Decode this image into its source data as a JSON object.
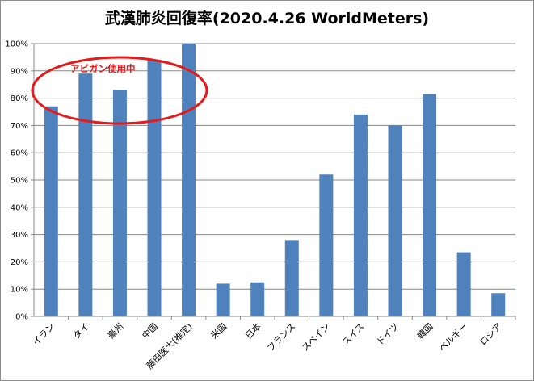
{
  "chart_data": {
    "type": "bar",
    "title": "武漢肺炎回復率(2020.4.26 WorldMeters)",
    "xlabel": "",
    "ylabel": "",
    "ylim": [
      0,
      100
    ],
    "yticks": [
      "0%",
      "10%",
      "20%",
      "30%",
      "40%",
      "50%",
      "60%",
      "70%",
      "80%",
      "90%",
      "100%"
    ],
    "categories": [
      "イラン",
      "タイ",
      "豪州",
      "中国",
      "藤田医大(推定)",
      "米国",
      "日本",
      "フランス",
      "スペイン",
      "スイス",
      "ドイツ",
      "韓国",
      "ベルギー",
      "ロシア"
    ],
    "values": [
      77,
      89,
      83,
      94,
      100,
      12,
      12.5,
      28,
      52,
      74,
      70,
      81.5,
      23.5,
      8.5
    ],
    "grid": true,
    "legend": "none",
    "annotation": {
      "text": "アビガン使用中"
    },
    "colors": {
      "bar": "#4f81bd",
      "grid": "#878787",
      "annotation": "#e41a1c"
    }
  }
}
